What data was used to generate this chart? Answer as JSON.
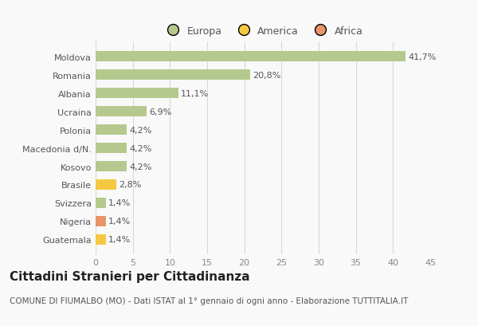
{
  "categories": [
    "Guatemala",
    "Nigeria",
    "Svizzera",
    "Brasile",
    "Kosovo",
    "Macedonia d/N.",
    "Polonia",
    "Ucraina",
    "Albania",
    "Romania",
    "Moldova"
  ],
  "values": [
    1.4,
    1.4,
    1.4,
    2.8,
    4.2,
    4.2,
    4.2,
    6.9,
    11.1,
    20.8,
    41.7
  ],
  "colors": [
    "#f5c842",
    "#e8956a",
    "#b5c98e",
    "#f5c842",
    "#b5c98e",
    "#b5c98e",
    "#b5c98e",
    "#b5c98e",
    "#b5c98e",
    "#b5c98e",
    "#b5c98e"
  ],
  "labels": [
    "1,4%",
    "1,4%",
    "1,4%",
    "2,8%",
    "4,2%",
    "4,2%",
    "4,2%",
    "6,9%",
    "11,1%",
    "20,8%",
    "41,7%"
  ],
  "legend_labels": [
    "Europa",
    "America",
    "Africa"
  ],
  "legend_colors": [
    "#b5c98e",
    "#f5c842",
    "#e8956a"
  ],
  "xlim": [
    0,
    45
  ],
  "xticks": [
    0,
    5,
    10,
    15,
    20,
    25,
    30,
    35,
    40,
    45
  ],
  "title": "Cittadini Stranieri per Cittadinanza",
  "subtitle": "COMUNE DI FIUMALBO (MO) - Dati ISTAT al 1° gennaio di ogni anno - Elaborazione TUTTITALIA.IT",
  "bg_color": "#f9f9f9",
  "grid_color": "#d8d8d8",
  "bar_height": 0.55,
  "title_fontsize": 11,
  "subtitle_fontsize": 7.5,
  "label_fontsize": 8,
  "tick_fontsize": 8,
  "legend_fontsize": 9
}
